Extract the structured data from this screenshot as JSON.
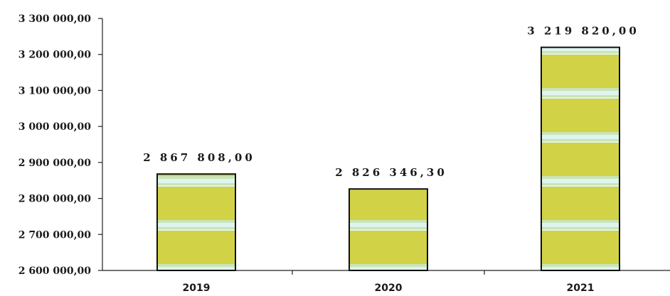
{
  "chart_data": {
    "type": "bar",
    "categories": [
      "2019",
      "2020",
      "2021"
    ],
    "values": [
      2867808.0,
      2826346.3,
      3219820.0
    ],
    "data_labels": [
      "2 867 808,00",
      "2 826 346,30",
      "3 219 820,00"
    ],
    "ylim": [
      2600000,
      3300000
    ],
    "y_ticks": [
      2600000,
      2700000,
      2800000,
      2900000,
      3000000,
      3100000,
      3200000,
      3300000
    ],
    "y_tick_labels": [
      "2 600 000,00",
      "2 700 000,00",
      "2 800 000,00",
      "2 900 000,00",
      "3 000 000,00",
      "3 100 000,00",
      "3 200 000,00",
      "3 300 000,00"
    ],
    "title": "",
    "xlabel": "",
    "ylabel": "",
    "grid": false,
    "legend": "none",
    "bar_fill_color": "#d2d247",
    "bar_stripe_color": "#d8f0ea",
    "bar_outline_color": "#111111"
  }
}
